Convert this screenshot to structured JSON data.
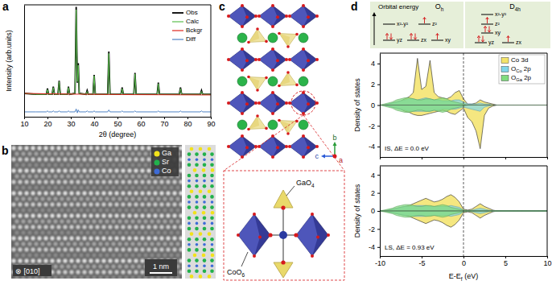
{
  "panel_labels": [
    "a",
    "b",
    "c",
    "d"
  ],
  "chart_data": [
    {
      "type": "line",
      "x_label": "2θ (degree)",
      "y_label": "Intensity (arb.units)",
      "x": [
        10,
        15,
        19.5,
        20,
        20.5,
        22,
        22.5,
        23,
        24.5,
        25,
        25.5,
        28.5,
        29,
        29.5,
        31.8,
        32.3,
        32.8,
        33.2,
        33.6,
        36.5,
        37,
        37.5,
        39.5,
        40,
        40.5,
        45.8,
        46.3,
        46.8,
        51.5,
        52,
        52.5,
        57,
        57.5,
        58,
        67,
        67.5,
        68,
        76.5,
        77,
        77.5,
        85.5,
        86,
        86.5,
        90
      ],
      "series": [
        {
          "name": "Obs",
          "color": "#000000",
          "values": [
            9,
            8,
            8,
            14,
            8,
            8,
            16,
            8,
            8,
            22,
            8,
            8,
            16,
            8,
            9,
            98,
            20,
            40,
            9,
            8,
            12,
            8,
            8,
            28,
            8,
            8,
            52,
            8,
            8,
            15,
            8,
            8,
            30,
            8,
            8,
            20,
            8,
            8,
            15,
            8,
            8,
            12,
            8,
            8
          ]
        },
        {
          "name": "Calc",
          "color": "#5cbf4e",
          "values": [
            9,
            8,
            8,
            13,
            8,
            8,
            15,
            8,
            8,
            21,
            8,
            8,
            15,
            8,
            9,
            95,
            21,
            38,
            9,
            8,
            11,
            8,
            8,
            27,
            8,
            8,
            50,
            8,
            8,
            14,
            8,
            8,
            29,
            8,
            8,
            19,
            8,
            8,
            14,
            8,
            8,
            11,
            8,
            8
          ]
        },
        {
          "name": "Bckgr",
          "color": "#e0261c",
          "values": [
            9,
            8.8,
            8.6,
            8.6,
            8.6,
            8.5,
            8.5,
            8.5,
            8.4,
            8.4,
            8.4,
            8.3,
            8.3,
            8.3,
            8.2,
            8.2,
            8.2,
            8.2,
            8.2,
            8.1,
            8.1,
            8.1,
            8,
            8,
            8,
            7.9,
            7.9,
            7.9,
            7.8,
            7.8,
            7.8,
            7.7,
            7.7,
            7.7,
            7.6,
            7.6,
            7.6,
            7.5,
            7.5,
            7.5,
            7.4,
            7.4,
            7.4,
            7.4
          ]
        },
        {
          "name": "Diff",
          "color": "#4f82c4",
          "values": [
            -10,
            -10,
            -10,
            -9,
            -10,
            -10,
            -9,
            -10,
            -10,
            -9,
            -10,
            -10,
            -9,
            -10,
            -10,
            -7,
            -11,
            -8,
            -10,
            -10,
            -9,
            -10,
            -10,
            -9,
            -10,
            -10,
            -8,
            -10,
            -10,
            -9,
            -10,
            -10,
            -9,
            -10,
            -10,
            -9,
            -10,
            -10,
            -9,
            -10,
            -10,
            -9,
            -10,
            -10
          ]
        }
      ],
      "xlim": [
        10,
        90
      ],
      "xticks": [
        10,
        20,
        30,
        40,
        50,
        60,
        70,
        80,
        90
      ],
      "ylim": [
        -15,
        100
      ],
      "tick_labels": "x",
      "legend": "upper right"
    },
    {
      "type": "area",
      "y_label": "Density of states",
      "annotation": "IS, ΔE = 0.0 eV",
      "x": [
        -10,
        -9.5,
        -9,
        -8.5,
        -8,
        -7.5,
        -7,
        -6.5,
        -6,
        -5.5,
        -5,
        -4.5,
        -4,
        -3.5,
        -3,
        -2.5,
        -2,
        -1.5,
        -1,
        -0.5,
        0,
        0.5,
        1,
        1.5,
        2,
        2.5,
        3,
        3.5,
        4,
        4.5,
        5,
        5.5,
        6,
        6.5,
        7,
        7.5,
        8,
        8.5,
        9,
        9.5,
        10
      ],
      "series": [
        {
          "name": "Co 3d",
          "color": "#f3e36a",
          "values": [
            0,
            0,
            0.1,
            0.2,
            0.3,
            0.4,
            0.6,
            0.8,
            1.2,
            4.5,
            1.5,
            1.8,
            4.3,
            1.2,
            0.8,
            0.7,
            0.6,
            0.8,
            1.2,
            1.4,
            0.6,
            0.1,
            0.1,
            0.2,
            0.5,
            0.3,
            0.2,
            0.1,
            0,
            0,
            0,
            0,
            0,
            0,
            0,
            0,
            0,
            0,
            0,
            0,
            0
          ],
          "values_down": [
            0,
            0,
            -0.1,
            -0.2,
            -0.3,
            -0.4,
            -0.6,
            -0.7,
            -0.9,
            -1,
            -1,
            -0.9,
            -0.8,
            -0.7,
            -0.6,
            -0.5,
            -0.6,
            -0.8,
            -0.9,
            -0.6,
            -0.3,
            -1.2,
            -1.6,
            -2.5,
            -4.2,
            -1,
            -0.3,
            -0.1,
            0,
            0,
            0,
            0,
            0,
            0,
            0,
            0,
            0,
            0,
            0,
            0,
            0
          ]
        },
        {
          "name": [
            "O",
            {
              "sub": "Co"
            },
            " 2p"
          ],
          "color": "#7fd6ea",
          "values": [
            0,
            0,
            0.1,
            0.2,
            0.3,
            0.4,
            0.5,
            0.6,
            0.6,
            0.5,
            0.6,
            0.7,
            0.6,
            0.5,
            0.5,
            0.4,
            0.4,
            0.4,
            0.5,
            0.5,
            0.3,
            0.1,
            0.1,
            0.1,
            0.2,
            0.1,
            0.1,
            0,
            0,
            0,
            0,
            0,
            0,
            0,
            0,
            0,
            0,
            0,
            0,
            0,
            0
          ],
          "values_down": [
            0,
            0,
            -0.1,
            -0.2,
            -0.3,
            -0.4,
            -0.5,
            -0.6,
            -0.6,
            -0.6,
            -0.6,
            -0.6,
            -0.6,
            -0.5,
            -0.5,
            -0.4,
            -0.4,
            -0.4,
            -0.4,
            -0.3,
            -0.2,
            -0.3,
            -0.4,
            -0.5,
            -0.6,
            -0.2,
            -0.1,
            0,
            0,
            0,
            0,
            0,
            0,
            0,
            0,
            0,
            0,
            0,
            0,
            0,
            0
          ]
        },
        {
          "name": [
            "O",
            {
              "sub": "Ga"
            },
            " 2p"
          ],
          "color": "#7fdc7f",
          "values": [
            0,
            0.1,
            0.2,
            0.3,
            0.5,
            0.6,
            0.7,
            0.7,
            0.6,
            0.5,
            0.5,
            0.6,
            0.6,
            0.5,
            0.6,
            0.7,
            0.6,
            0.4,
            0.3,
            0.2,
            0.1,
            0,
            0,
            0,
            0,
            0,
            0,
            0,
            0,
            0,
            0,
            0,
            0,
            0,
            0,
            0,
            0,
            0,
            0,
            0,
            0
          ],
          "values_down": [
            0,
            -0.1,
            -0.2,
            -0.3,
            -0.5,
            -0.6,
            -0.7,
            -0.7,
            -0.6,
            -0.5,
            -0.5,
            -0.6,
            -0.6,
            -0.5,
            -0.6,
            -0.7,
            -0.6,
            -0.4,
            -0.3,
            -0.2,
            -0.1,
            0,
            0,
            0,
            0,
            0,
            0,
            0,
            0,
            0,
            0,
            0,
            0,
            0,
            0,
            0,
            0,
            0,
            0,
            0,
            0
          ]
        }
      ],
      "xlim": [
        -10,
        10
      ],
      "xticks": [
        -10,
        -5,
        0,
        5,
        10
      ],
      "ylim": [
        -5,
        5
      ],
      "yticks": [
        -4,
        -2,
        0,
        2,
        4
      ],
      "tick_labels": "y",
      "legend": "upper right"
    },
    {
      "type": "area",
      "y_label": "Density of states",
      "x_label": [
        "E-E",
        {
          "sub": "f"
        },
        " (eV)"
      ],
      "annotation": "LS, ΔE = 0.93 eV",
      "x": [
        -10,
        -9.5,
        -9,
        -8.5,
        -8,
        -7.5,
        -7,
        -6.5,
        -6,
        -5.5,
        -5,
        -4.5,
        -4,
        -3.5,
        -3,
        -2.5,
        -2,
        -1.5,
        -1,
        -0.5,
        0,
        0.5,
        1,
        1.5,
        2,
        2.5,
        3,
        3.5,
        4,
        4.5,
        5,
        5.5,
        6,
        6.5,
        7,
        7.5,
        8,
        8.5,
        9,
        9.5,
        10
      ],
      "series": [
        {
          "color": "#f3e36a",
          "values": [
            0,
            0,
            0.1,
            0.2,
            0.3,
            0.4,
            0.5,
            0.6,
            0.8,
            1,
            1.2,
            1.4,
            1.2,
            1,
            1.1,
            1.3,
            1.6,
            1.8,
            1.5,
            1,
            0.2,
            0.1,
            0.2,
            0.5,
            0.8,
            0.5,
            0.3,
            0.1,
            0,
            0,
            0,
            0,
            0,
            0,
            0,
            0,
            0,
            0,
            0,
            0,
            0
          ],
          "values_down": [
            0,
            0,
            -0.1,
            -0.2,
            -0.3,
            -0.4,
            -0.5,
            -0.6,
            -0.8,
            -1,
            -1.2,
            -1.4,
            -1.2,
            -1,
            -1.1,
            -1.3,
            -1.6,
            -1.8,
            -1.5,
            -1,
            -0.2,
            -0.1,
            -0.2,
            -0.5,
            -0.8,
            -0.5,
            -0.3,
            -0.1,
            0,
            0,
            0,
            0,
            0,
            0,
            0,
            0,
            0,
            0,
            0,
            0,
            0
          ]
        },
        {
          "color": "#7fd6ea",
          "values": [
            0,
            0,
            0.1,
            0.2,
            0.3,
            0.4,
            0.5,
            0.5,
            0.6,
            0.6,
            0.6,
            0.6,
            0.5,
            0.5,
            0.5,
            0.5,
            0.5,
            0.6,
            0.5,
            0.4,
            0.1,
            0,
            0.1,
            0.2,
            0.3,
            0.2,
            0.1,
            0,
            0,
            0,
            0,
            0,
            0,
            0,
            0,
            0,
            0,
            0,
            0,
            0,
            0
          ],
          "values_down": [
            0,
            0,
            -0.1,
            -0.2,
            -0.3,
            -0.4,
            -0.5,
            -0.5,
            -0.6,
            -0.6,
            -0.6,
            -0.6,
            -0.5,
            -0.5,
            -0.5,
            -0.5,
            -0.5,
            -0.6,
            -0.5,
            -0.4,
            -0.1,
            0,
            -0.1,
            -0.2,
            -0.3,
            -0.2,
            -0.1,
            0,
            0,
            0,
            0,
            0,
            0,
            0,
            0,
            0,
            0,
            0,
            0,
            0,
            0
          ]
        },
        {
          "color": "#7fdc7f",
          "values": [
            0,
            0.1,
            0.2,
            0.3,
            0.5,
            0.6,
            0.7,
            0.7,
            0.6,
            0.5,
            0.5,
            0.6,
            0.6,
            0.5,
            0.6,
            0.7,
            0.6,
            0.4,
            0.3,
            0.2,
            0.1,
            0,
            0,
            0,
            0,
            0,
            0,
            0,
            0,
            0,
            0,
            0,
            0,
            0,
            0,
            0,
            0,
            0,
            0,
            0,
            0
          ],
          "values_down": [
            0,
            -0.1,
            -0.2,
            -0.3,
            -0.5,
            -0.6,
            -0.7,
            -0.7,
            -0.6,
            -0.5,
            -0.5,
            -0.6,
            -0.6,
            -0.5,
            -0.6,
            -0.7,
            -0.6,
            -0.4,
            -0.3,
            -0.2,
            -0.1,
            0,
            0,
            0,
            0,
            0,
            0,
            0,
            0,
            0,
            0,
            0,
            0,
            0,
            0,
            0,
            0,
            0,
            0,
            0,
            0
          ]
        }
      ],
      "xlim": [
        -10,
        10
      ],
      "xticks": [
        -10,
        -5,
        0,
        5,
        10
      ],
      "ylim": [
        -5,
        5
      ],
      "yticks": [
        -4,
        -2,
        0,
        2,
        4
      ]
    }
  ],
  "micrograph": {
    "zone_axis": "⊗ [010]",
    "scale_bar": "1 nm",
    "atoms": [
      "Ga",
      "Sr",
      "Co"
    ],
    "colors": [
      "#f2e21b",
      "#22b14c",
      "#3d6bd6"
    ]
  },
  "structure": {
    "axes": [
      "b",
      "c",
      "a"
    ],
    "inset_labels": [
      [
        "GaO",
        {
          "sub": "4"
        }
      ],
      [
        "CoO",
        {
          "sub": "6"
        }
      ]
    ]
  },
  "orbital_diagram": {
    "axis_label": "Orbital energy",
    "groups": [
      {
        "title": [
          "O",
          {
            "sub": "h"
          }
        ],
        "levels": [
          {
            "label": "x²-y²",
            "electrons": 0
          },
          {
            "label": "z²",
            "electrons": 1
          },
          {
            "label": "yz",
            "electrons": 2
          },
          {
            "label": "zx",
            "electrons": 2
          },
          {
            "label": "xy",
            "electrons": 1
          }
        ]
      },
      {
        "title": [
          "D",
          {
            "sub": "4h"
          }
        ],
        "levels": [
          {
            "label": "x²-y²",
            "electrons": 0
          },
          {
            "label": "z²",
            "electrons": 1
          },
          {
            "label": "xy",
            "electrons": 2
          },
          {
            "label": "yz",
            "electrons": 2
          },
          {
            "label": "zx",
            "electrons": 1
          }
        ]
      }
    ]
  }
}
